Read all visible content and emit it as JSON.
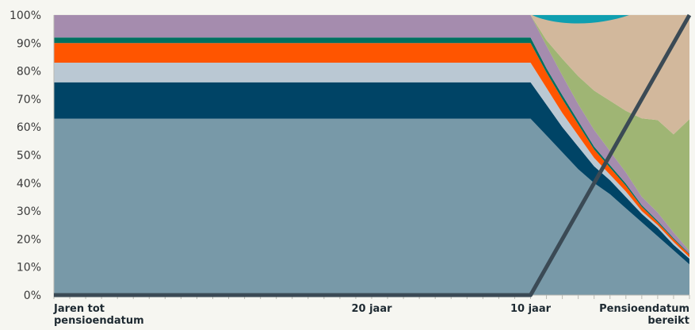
{
  "chart_data": {
    "type": "area",
    "stacking": "percent",
    "ylim": [
      0,
      100
    ],
    "y_tick_labels": [
      "0%",
      "10%",
      "20%",
      "30%",
      "40%",
      "50%",
      "60%",
      "70%",
      "80%",
      "90%",
      "100%"
    ],
    "x_tick_labels": [
      {
        "lines": [
          "Jaren tot",
          "pensioendatum"
        ],
        "anchor": "start",
        "pos": 0
      },
      {
        "lines": [
          "20 jaar"
        ],
        "anchor": "middle",
        "pos": 20
      },
      {
        "lines": [
          "10 jaar"
        ],
        "anchor": "middle",
        "pos": 30
      },
      {
        "lines": [
          "Pensioendatum",
          "bereikt"
        ],
        "anchor": "end",
        "pos": 40
      }
    ],
    "xlim": [
      0,
      40
    ],
    "grid": true,
    "legend": "none",
    "x": [
      0,
      30,
      31,
      32,
      33,
      34,
      35,
      36,
      37,
      38,
      39,
      40
    ],
    "series": [
      {
        "color": "#7899a8",
        "values": [
          63,
          63,
          57,
          51,
          45,
          40,
          36,
          31,
          26,
          21,
          16,
          11
        ]
      },
      {
        "color": "#004466",
        "values": [
          13,
          13,
          11,
          9,
          8,
          6,
          5,
          4,
          3,
          3,
          2,
          2
        ]
      },
      {
        "color": "#bac8d3",
        "values": [
          7,
          7,
          6,
          5,
          4,
          3,
          2,
          2,
          1,
          1,
          1,
          0.5
        ]
      },
      {
        "color": "#ff5500",
        "values": [
          7,
          7,
          5.5,
          5,
          4,
          3,
          2.5,
          2,
          1.5,
          1,
          1,
          1
        ]
      },
      {
        "color": "#007060",
        "values": [
          2,
          2,
          1.5,
          1.4,
          1.2,
          1,
          0.9,
          0.8,
          0.6,
          0.5,
          0.4,
          0.3
        ]
      },
      {
        "color": "#a58cae",
        "values": [
          8,
          8,
          8,
          7,
          6,
          6,
          5,
          4,
          3,
          3,
          2,
          1
        ]
      },
      {
        "color": "#9fb574",
        "values": [
          0,
          0,
          2,
          6,
          10,
          14,
          18,
          22,
          28,
          33,
          35,
          47
        ]
      },
      {
        "color": "#d2b89c",
        "values": [
          0,
          0,
          9,
          15.6,
          21.8,
          27,
          30.6,
          34.2,
          36.9,
          38.5,
          42.6,
          37.2
        ]
      },
      {
        "color": "#0f9fb0",
        "values": [
          0,
          0,
          0,
          0,
          0,
          0,
          0,
          0,
          0,
          0,
          0,
          0
        ]
      }
    ],
    "line": {
      "color": "#3b4a55",
      "x": [
        0,
        30,
        40
      ],
      "y": [
        0,
        0,
        100
      ]
    }
  }
}
